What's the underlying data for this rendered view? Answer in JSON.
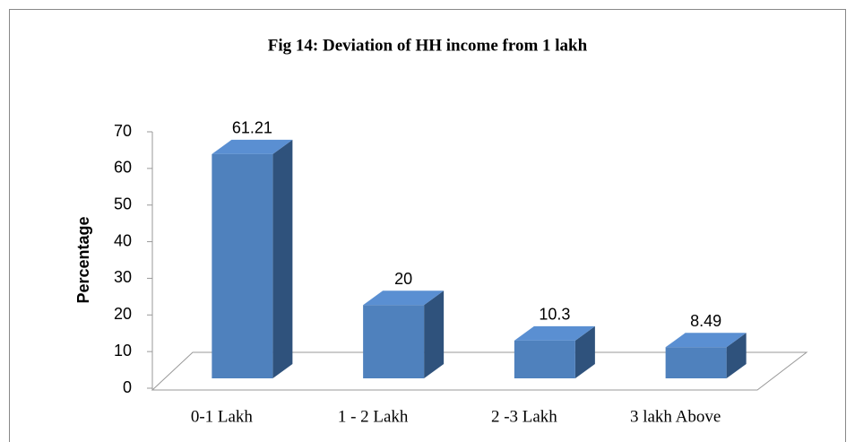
{
  "chart_data": {
    "type": "bar3d",
    "title": "Fig 14: Deviation of HH income from 1 lakh",
    "y_label": "Percentage",
    "categories": [
      "0-1 Lakh",
      "1 - 2 Lakh",
      "2 -3 Lakh",
      "3 lakh Above"
    ],
    "values": [
      61.21,
      20,
      10.3,
      8.49
    ],
    "color": "#4f81bd",
    "ylim": [
      0,
      70
    ],
    "yticks": [
      0,
      10,
      20,
      30,
      40,
      50,
      60,
      70
    ],
    "grid": false
  }
}
